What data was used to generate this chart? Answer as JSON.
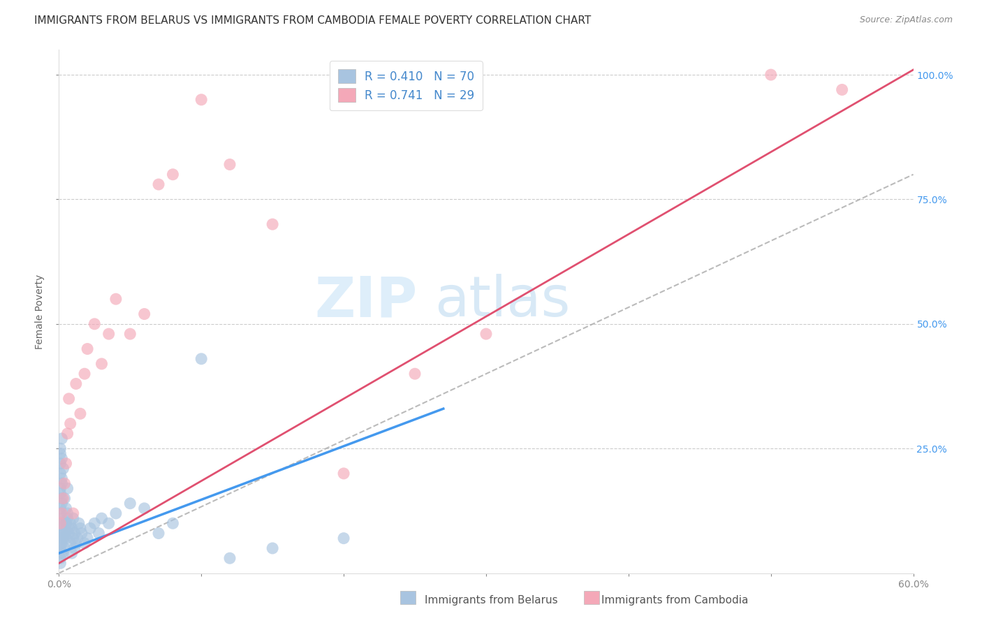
{
  "title": "IMMIGRANTS FROM BELARUS VS IMMIGRANTS FROM CAMBODIA FEMALE POVERTY CORRELATION CHART",
  "source": "Source: ZipAtlas.com",
  "ylabel": "Female Poverty",
  "x_min": 0.0,
  "x_max": 0.6,
  "y_min": 0.0,
  "y_max": 1.05,
  "x_ticks": [
    0.0,
    0.1,
    0.2,
    0.3,
    0.4,
    0.5,
    0.6
  ],
  "x_tick_labels": [
    "0.0%",
    "",
    "",
    "",
    "",
    "",
    "60.0%"
  ],
  "y_ticks": [
    0.0,
    0.25,
    0.5,
    0.75,
    1.0
  ],
  "y_tick_labels_right": [
    "",
    "25.0%",
    "50.0%",
    "75.0%",
    "100.0%"
  ],
  "belarus_color": "#a8c4e0",
  "cambodia_color": "#f4a8b8",
  "trendline_belarus_color": "#4499ee",
  "trendline_cambodia_color": "#e05070",
  "trendline_ref_color": "#aaaaaa",
  "legend_R_belarus": "0.410",
  "legend_N_belarus": "70",
  "legend_R_cambodia": "0.741",
  "legend_N_cambodia": "29",
  "watermark_zip": "ZIP",
  "watermark_atlas": "atlas",
  "belarus_x": [
    0.001,
    0.002,
    0.001,
    0.003,
    0.001,
    0.002,
    0.001,
    0.002,
    0.003,
    0.001,
    0.002,
    0.001,
    0.002,
    0.001,
    0.003,
    0.001,
    0.002,
    0.001,
    0.002,
    0.001,
    0.002,
    0.003,
    0.001,
    0.002,
    0.001,
    0.003,
    0.002,
    0.001,
    0.002,
    0.001,
    0.004,
    0.005,
    0.006,
    0.004,
    0.005,
    0.007,
    0.006,
    0.005,
    0.004,
    0.006,
    0.008,
    0.007,
    0.009,
    0.008,
    0.01,
    0.009,
    0.011,
    0.01,
    0.012,
    0.011,
    0.013,
    0.015,
    0.014,
    0.016,
    0.018,
    0.02,
    0.022,
    0.025,
    0.028,
    0.03,
    0.035,
    0.04,
    0.05,
    0.06,
    0.07,
    0.08,
    0.1,
    0.15,
    0.2,
    0.12
  ],
  "belarus_y": [
    0.05,
    0.08,
    0.1,
    0.07,
    0.12,
    0.06,
    0.09,
    0.11,
    0.04,
    0.13,
    0.15,
    0.03,
    0.07,
    0.17,
    0.08,
    0.2,
    0.18,
    0.22,
    0.14,
    0.16,
    0.19,
    0.21,
    0.24,
    0.23,
    0.25,
    0.1,
    0.27,
    0.02,
    0.04,
    0.06,
    0.08,
    0.1,
    0.12,
    0.15,
    0.07,
    0.09,
    0.11,
    0.13,
    0.05,
    0.17,
    0.06,
    0.08,
    0.04,
    0.1,
    0.07,
    0.09,
    0.05,
    0.11,
    0.06,
    0.08,
    0.07,
    0.09,
    0.1,
    0.08,
    0.06,
    0.07,
    0.09,
    0.1,
    0.08,
    0.11,
    0.1,
    0.12,
    0.14,
    0.13,
    0.08,
    0.1,
    0.43,
    0.05,
    0.07,
    0.03
  ],
  "cambodia_x": [
    0.001,
    0.002,
    0.003,
    0.004,
    0.005,
    0.006,
    0.007,
    0.008,
    0.01,
    0.012,
    0.015,
    0.018,
    0.02,
    0.025,
    0.03,
    0.035,
    0.04,
    0.05,
    0.06,
    0.07,
    0.08,
    0.1,
    0.12,
    0.15,
    0.2,
    0.25,
    0.3,
    0.5,
    0.55
  ],
  "cambodia_y": [
    0.1,
    0.12,
    0.15,
    0.18,
    0.22,
    0.28,
    0.35,
    0.3,
    0.12,
    0.38,
    0.32,
    0.4,
    0.45,
    0.5,
    0.42,
    0.48,
    0.55,
    0.48,
    0.52,
    0.78,
    0.8,
    0.95,
    0.82,
    0.7,
    0.2,
    0.4,
    0.48,
    1.0,
    0.97
  ],
  "trendline_belarus_x0": 0.0,
  "trendline_belarus_y0": 0.04,
  "trendline_belarus_x1": 0.27,
  "trendline_belarus_y1": 0.33,
  "trendline_cambodia_x0": 0.0,
  "trendline_cambodia_y0": 0.02,
  "trendline_cambodia_x1": 0.6,
  "trendline_cambodia_y1": 1.01,
  "trendline_ref_x0": 0.0,
  "trendline_ref_y0": 0.0,
  "trendline_ref_x1": 0.6,
  "trendline_ref_y1": 0.8
}
